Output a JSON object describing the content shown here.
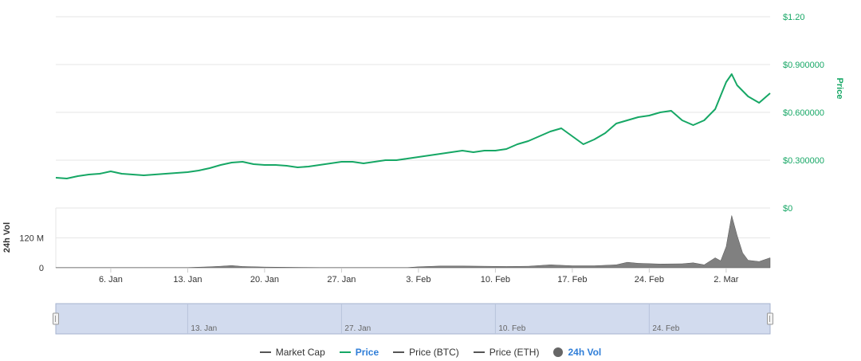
{
  "chart_data": {
    "type": "line",
    "price_axis": {
      "label": "Price",
      "range": [
        0,
        1.2
      ],
      "ticks": [
        {
          "value": 1.2,
          "label": "$1.20"
        },
        {
          "value": 0.9,
          "label": "$0.900000"
        },
        {
          "value": 0.6,
          "label": "$0.600000"
        },
        {
          "value": 0.3,
          "label": "$0.300000"
        },
        {
          "value": 0,
          "label": "$0"
        }
      ]
    },
    "volume_axis": {
      "label": "24h Vol",
      "range": [
        0,
        240
      ],
      "ticks": [
        {
          "value": 120,
          "label": "120 M"
        },
        {
          "value": 0,
          "label": "0"
        }
      ]
    },
    "x_ticks": [
      {
        "day": 6,
        "label": "6. Jan"
      },
      {
        "day": 13,
        "label": "13. Jan"
      },
      {
        "day": 20,
        "label": "20. Jan"
      },
      {
        "day": 27,
        "label": "27. Jan"
      },
      {
        "day": 34,
        "label": "3. Feb"
      },
      {
        "day": 41,
        "label": "10. Feb"
      },
      {
        "day": 48,
        "label": "17. Feb"
      },
      {
        "day": 55,
        "label": "24. Feb"
      },
      {
        "day": 62,
        "label": "2. Mar"
      }
    ],
    "navigator_ticks": [
      {
        "day": 13,
        "label": "13. Jan"
      },
      {
        "day": 27,
        "label": "27. Jan"
      },
      {
        "day": 41,
        "label": "10. Feb"
      },
      {
        "day": 55,
        "label": "24. Feb"
      }
    ],
    "x_range": [
      1,
      66
    ],
    "price_series": {
      "name": "Price",
      "color": "#16a765",
      "x": [
        1,
        2,
        3,
        4,
        5,
        6,
        7,
        8,
        9,
        10,
        11,
        12,
        13,
        14,
        15,
        16,
        17,
        18,
        19,
        20,
        21,
        22,
        23,
        24,
        25,
        26,
        27,
        28,
        29,
        30,
        31,
        32,
        33,
        34,
        35,
        36,
        37,
        38,
        39,
        40,
        41,
        42,
        43,
        44,
        45,
        46,
        47,
        48,
        49,
        50,
        51,
        52,
        53,
        54,
        55,
        56,
        57,
        58,
        59,
        60,
        61,
        62,
        62.5,
        63,
        64,
        65,
        66
      ],
      "values": [
        0.19,
        0.185,
        0.2,
        0.21,
        0.215,
        0.23,
        0.215,
        0.21,
        0.205,
        0.21,
        0.215,
        0.22,
        0.225,
        0.235,
        0.25,
        0.27,
        0.285,
        0.29,
        0.275,
        0.27,
        0.27,
        0.265,
        0.255,
        0.26,
        0.27,
        0.28,
        0.29,
        0.29,
        0.28,
        0.29,
        0.3,
        0.3,
        0.31,
        0.32,
        0.33,
        0.34,
        0.35,
        0.36,
        0.35,
        0.36,
        0.36,
        0.37,
        0.4,
        0.42,
        0.45,
        0.48,
        0.5,
        0.45,
        0.4,
        0.43,
        0.47,
        0.53,
        0.55,
        0.57,
        0.58,
        0.6,
        0.61,
        0.55,
        0.52,
        0.55,
        0.62,
        0.79,
        0.84,
        0.77,
        0.7,
        0.66,
        0.72
      ]
    },
    "volume_series": {
      "name": "24h Vol",
      "color": "#666666",
      "x": [
        1,
        5,
        9,
        13,
        15,
        16,
        17,
        18,
        20,
        22,
        25,
        27,
        30,
        33,
        34,
        36,
        38,
        40,
        42,
        44,
        46,
        47,
        48,
        50,
        52,
        53,
        54,
        56,
        58,
        59,
        60,
        60.5,
        61,
        61.5,
        62,
        62.5,
        63,
        63.5,
        64,
        65,
        66
      ],
      "values": [
        1,
        1,
        1,
        1,
        4,
        6,
        9,
        5,
        3,
        2,
        1,
        1,
        1,
        1,
        4,
        7,
        7,
        6,
        5,
        6,
        12,
        10,
        8,
        8,
        12,
        22,
        18,
        15,
        16,
        20,
        12,
        26,
        40,
        28,
        85,
        210,
        130,
        60,
        30,
        25,
        40
      ]
    }
  },
  "legend": [
    {
      "label": "Market Cap",
      "marker": "line",
      "color": "#555555",
      "active": false
    },
    {
      "label": "Price",
      "marker": "line",
      "color": "#16a765",
      "active": true
    },
    {
      "label": "Price (BTC)",
      "marker": "line",
      "color": "#555555",
      "active": false
    },
    {
      "label": "Price (ETH)",
      "marker": "line",
      "color": "#555555",
      "active": false
    },
    {
      "label": "24h Vol",
      "marker": "dot",
      "color": "#666666",
      "active": true
    }
  ],
  "colors": {
    "accent": "#16a765",
    "active_label": "#2f7ed8",
    "navigator_fill": "#d2dbee",
    "navigator_border": "#a6b3cf",
    "grid": "#e6e6e6"
  }
}
